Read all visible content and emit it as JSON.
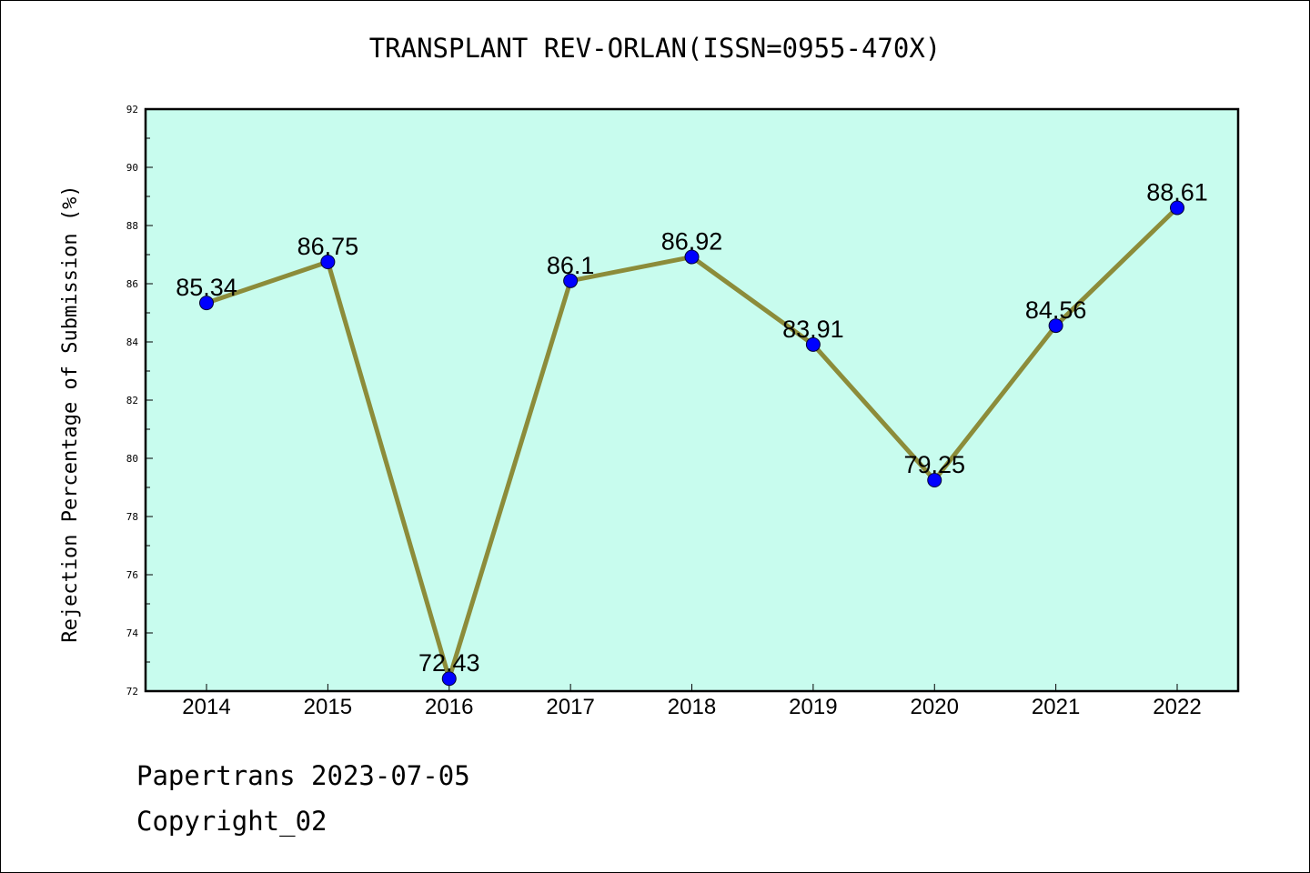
{
  "chart_data": {
    "type": "line",
    "title": "TRANSPLANT REV-ORLAN(ISSN=0955-470X)",
    "xlabel": "",
    "ylabel": "Rejection Percentage of Submission (%)",
    "categories": [
      "2014",
      "2015",
      "2016",
      "2017",
      "2018",
      "2019",
      "2020",
      "2021",
      "2022"
    ],
    "series": [
      {
        "values": [
          85.34,
          86.75,
          72.43,
          86.1,
          86.92,
          83.91,
          79.25,
          84.56,
          88.61
        ],
        "labels": [
          "85.34",
          "86.75",
          "72.43",
          "86.1",
          "86.92",
          "83.91",
          "79.25",
          "84.56",
          "88.61"
        ]
      }
    ],
    "ylim": [
      72,
      92
    ],
    "yticks": [
      72,
      74,
      76,
      78,
      80,
      82,
      84,
      86,
      88,
      90,
      92
    ],
    "grid": false,
    "colors": {
      "plot_background": "#c8fcee",
      "line": "#8c8c3a",
      "marker": "#0000ff",
      "axis": "#000000"
    }
  },
  "footer": {
    "date_line": "Papertrans 2023-07-05",
    "copyright_line": "Copyright_02"
  }
}
